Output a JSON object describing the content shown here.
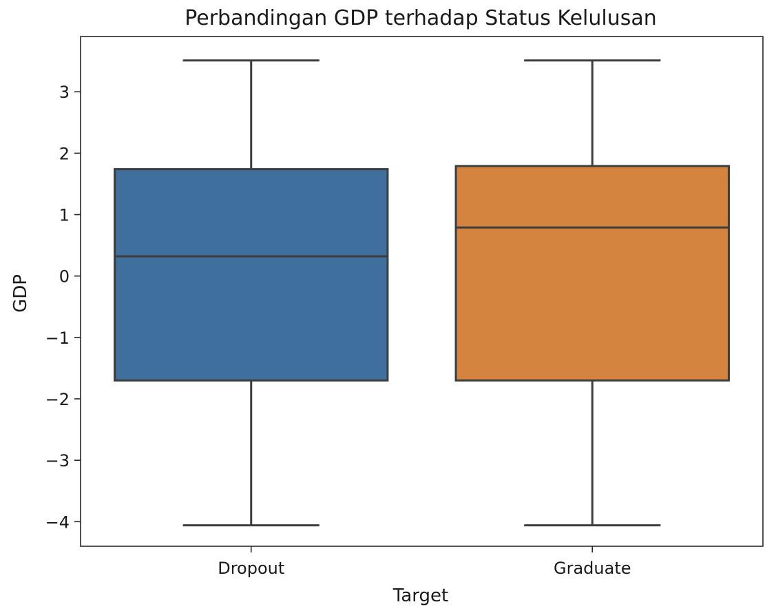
{
  "chart_data": {
    "type": "box",
    "title": "Perbandingan GDP terhadap Status Kelulusan",
    "xlabel": "Target",
    "ylabel": "GDP",
    "ylim": [
      -4.4,
      3.9
    ],
    "yticks": [
      3,
      2,
      1,
      0,
      -1,
      -2,
      -3,
      -4
    ],
    "ytick_labels": [
      "3",
      "2",
      "1",
      "0",
      "−1",
      "−2",
      "−3",
      "−4"
    ],
    "grid": false,
    "categories": [
      "Dropout",
      "Graduate"
    ],
    "boxes": [
      {
        "category": "Dropout",
        "whisker_low": -4.06,
        "q1": -1.7,
        "median": 0.32,
        "q3": 1.74,
        "whisker_high": 3.51,
        "color": "#3f6f9c"
      },
      {
        "category": "Graduate",
        "whisker_low": -4.06,
        "q1": -1.7,
        "median": 0.79,
        "q3": 1.79,
        "whisker_high": 3.51,
        "color": "#d4843f"
      }
    ],
    "line_color": "#3d3d3d"
  }
}
